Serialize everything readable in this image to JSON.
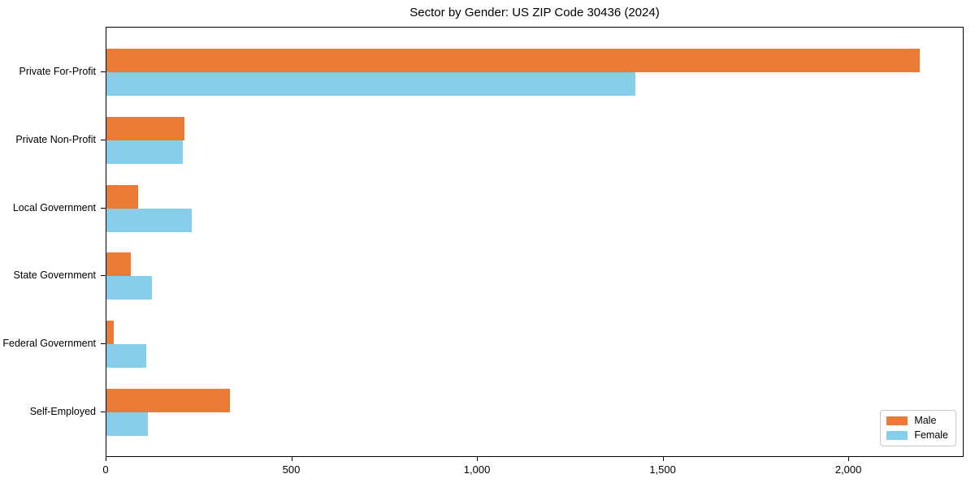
{
  "figure": {
    "background": "#ffffff",
    "text_color": "#000000",
    "spine_color": "#000000"
  },
  "chart_data": {
    "type": "bar",
    "orientation": "horizontal",
    "title": "Sector by Gender: US ZIP Code 30436 (2024)",
    "categories": [
      "Private For-Profit",
      "Private Non-Profit",
      "Local Government",
      "State Government",
      "Federal Government",
      "Self-Employed"
    ],
    "series": [
      {
        "name": "Male",
        "color": "#EA7A36",
        "values": [
          2190,
          210,
          85,
          65,
          20,
          333
        ]
      },
      {
        "name": "Female",
        "color": "#87CEEB",
        "values": [
          1425,
          205,
          230,
          122,
          107,
          111
        ]
      }
    ],
    "xlabel": "",
    "ylabel": "",
    "xlim": [
      0,
      2306
    ],
    "xticks": [
      0,
      500,
      1000,
      1500,
      2000
    ],
    "xtick_labels": [
      "0",
      "500",
      "1,000",
      "1,500",
      "2,000"
    ],
    "grid": false,
    "legend": {
      "position": "lower right",
      "entries": [
        "Male",
        "Female"
      ]
    }
  }
}
